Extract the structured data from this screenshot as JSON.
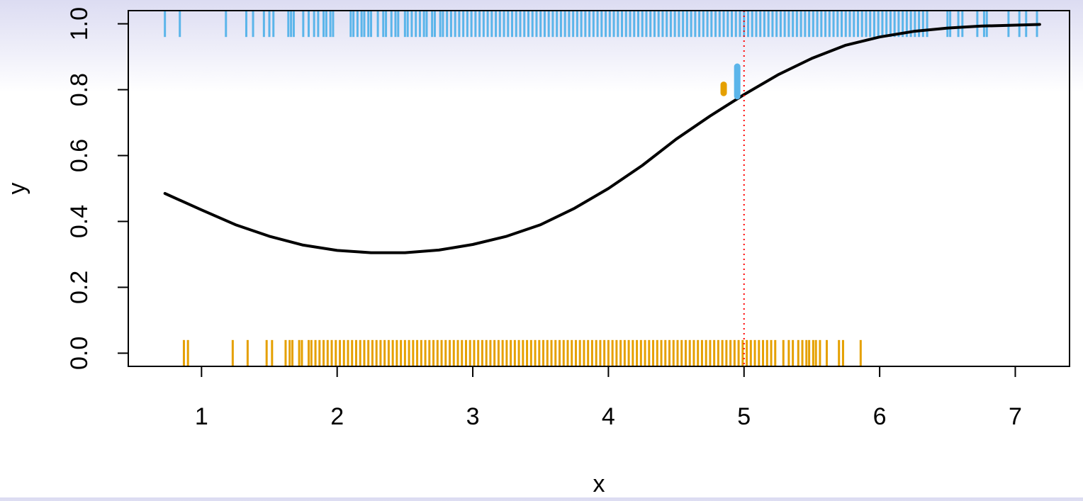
{
  "chart_data": {
    "type": "line",
    "title": "",
    "xlabel": "x",
    "ylabel": "y",
    "xlim": [
      0.46,
      7.4
    ],
    "ylim": [
      -0.04,
      1.04
    ],
    "x_ticks": [
      "1",
      "2",
      "3",
      "4",
      "5",
      "6",
      "7"
    ],
    "y_ticks": [
      "0.0",
      "0.2",
      "0.4",
      "0.6",
      "0.8",
      "1.0"
    ],
    "grid": false,
    "legend": "none",
    "colors": {
      "curve": "#000000",
      "rug_y1": "#5bb5ea",
      "rug_y0": "#e5a000",
      "reference_line": "#ff0000",
      "marker_y1": "#5bb5ea",
      "marker_y0": "#e5a000"
    },
    "series": [
      {
        "type": "line",
        "x": [
          0.73,
          1.0,
          1.25,
          1.5,
          1.75,
          2.0,
          2.25,
          2.5,
          2.75,
          3.0,
          3.25,
          3.5,
          3.75,
          4.0,
          4.25,
          4.5,
          4.75,
          5.0,
          5.25,
          5.5,
          5.75,
          6.0,
          6.25,
          6.5,
          6.75,
          7.0,
          7.18
        ],
        "y": [
          0.485,
          0.435,
          0.39,
          0.355,
          0.328,
          0.312,
          0.305,
          0.305,
          0.313,
          0.33,
          0.355,
          0.39,
          0.44,
          0.5,
          0.57,
          0.65,
          0.72,
          0.785,
          0.845,
          0.895,
          0.935,
          0.96,
          0.977,
          0.987,
          0.993,
          0.996,
          0.998
        ]
      }
    ],
    "rug_y1_x": [
      0.73,
      0.84,
      1.18,
      1.33,
      1.38,
      1.46,
      1.5,
      1.53,
      1.64,
      1.66,
      1.68,
      1.75,
      1.79,
      1.83,
      1.86,
      1.9,
      1.92,
      1.95,
      1.97,
      2.1,
      2.12,
      2.15,
      2.18,
      2.2,
      2.23,
      2.25,
      2.3,
      2.34,
      2.36,
      2.4,
      2.43,
      2.45,
      2.5,
      2.52,
      2.55,
      2.58,
      2.61,
      2.64,
      2.66,
      2.7,
      2.72,
      2.76,
      2.78,
      2.81,
      2.84,
      2.87,
      2.9,
      2.93,
      2.96,
      2.99,
      3.02,
      3.05,
      3.08,
      3.11,
      3.14,
      3.17,
      3.2,
      3.23,
      3.26,
      3.29,
      3.32,
      3.35,
      3.38,
      3.41,
      3.44,
      3.47,
      3.5,
      3.53,
      3.56,
      3.59,
      3.62,
      3.65,
      3.68,
      3.71,
      3.74,
      3.77,
      3.8,
      3.83,
      3.86,
      3.89,
      3.92,
      3.95,
      3.98,
      4.01,
      4.04,
      4.07,
      4.1,
      4.13,
      4.16,
      4.19,
      4.22,
      4.25,
      4.28,
      4.31,
      4.34,
      4.37,
      4.4,
      4.43,
      4.46,
      4.49,
      4.52,
      4.55,
      4.58,
      4.61,
      4.64,
      4.67,
      4.7,
      4.73,
      4.76,
      4.79,
      4.82,
      4.85,
      4.88,
      4.91,
      4.94,
      4.97,
      5.0,
      5.03,
      5.06,
      5.09,
      5.12,
      5.15,
      5.18,
      5.21,
      5.24,
      5.27,
      5.3,
      5.33,
      5.36,
      5.39,
      5.42,
      5.45,
      5.48,
      5.51,
      5.54,
      5.57,
      5.6,
      5.63,
      5.66,
      5.69,
      5.72,
      5.75,
      5.78,
      5.81,
      5.84,
      5.87,
      5.9,
      5.93,
      5.96,
      5.99,
      6.02,
      6.05,
      6.08,
      6.11,
      6.14,
      6.17,
      6.2,
      6.23,
      6.26,
      6.29,
      6.32,
      6.35,
      6.5,
      6.52,
      6.58,
      6.61,
      6.72,
      6.77,
      6.79,
      6.95,
      7.03,
      7.08,
      7.16
    ],
    "rug_y0_x": [
      0.87,
      0.9,
      1.23,
      1.34,
      1.48,
      1.52,
      1.62,
      1.65,
      1.67,
      1.72,
      1.74,
      1.79,
      1.81,
      1.84,
      1.87,
      1.9,
      1.93,
      1.96,
      1.99,
      2.02,
      2.05,
      2.08,
      2.11,
      2.14,
      2.17,
      2.2,
      2.23,
      2.26,
      2.29,
      2.32,
      2.35,
      2.38,
      2.41,
      2.44,
      2.47,
      2.5,
      2.53,
      2.56,
      2.59,
      2.62,
      2.65,
      2.68,
      2.71,
      2.74,
      2.77,
      2.8,
      2.83,
      2.86,
      2.89,
      2.92,
      2.95,
      2.98,
      3.01,
      3.04,
      3.07,
      3.1,
      3.13,
      3.16,
      3.19,
      3.22,
      3.25,
      3.28,
      3.31,
      3.34,
      3.37,
      3.4,
      3.43,
      3.46,
      3.49,
      3.52,
      3.55,
      3.58,
      3.61,
      3.64,
      3.67,
      3.7,
      3.73,
      3.76,
      3.79,
      3.82,
      3.85,
      3.88,
      3.91,
      3.94,
      3.97,
      4.0,
      4.03,
      4.06,
      4.09,
      4.12,
      4.15,
      4.18,
      4.21,
      4.24,
      4.27,
      4.3,
      4.33,
      4.36,
      4.39,
      4.42,
      4.45,
      4.48,
      4.51,
      4.54,
      4.57,
      4.6,
      4.63,
      4.66,
      4.69,
      4.72,
      4.75,
      4.78,
      4.81,
      4.84,
      4.87,
      4.9,
      4.93,
      4.96,
      4.99,
      5.02,
      5.05,
      5.08,
      5.11,
      5.14,
      5.17,
      5.2,
      5.23,
      5.29,
      5.33,
      5.36,
      5.4,
      5.43,
      5.46,
      5.48,
      5.51,
      5.53,
      5.56,
      5.61,
      5.7,
      5.73,
      5.86
    ],
    "reference_x": 5.0,
    "markers": [
      {
        "x": 4.85,
        "y_from": 0.79,
        "y_to": 0.815
      },
      {
        "x": 4.95,
        "y_from": 0.78,
        "y_to": 0.87
      }
    ]
  }
}
